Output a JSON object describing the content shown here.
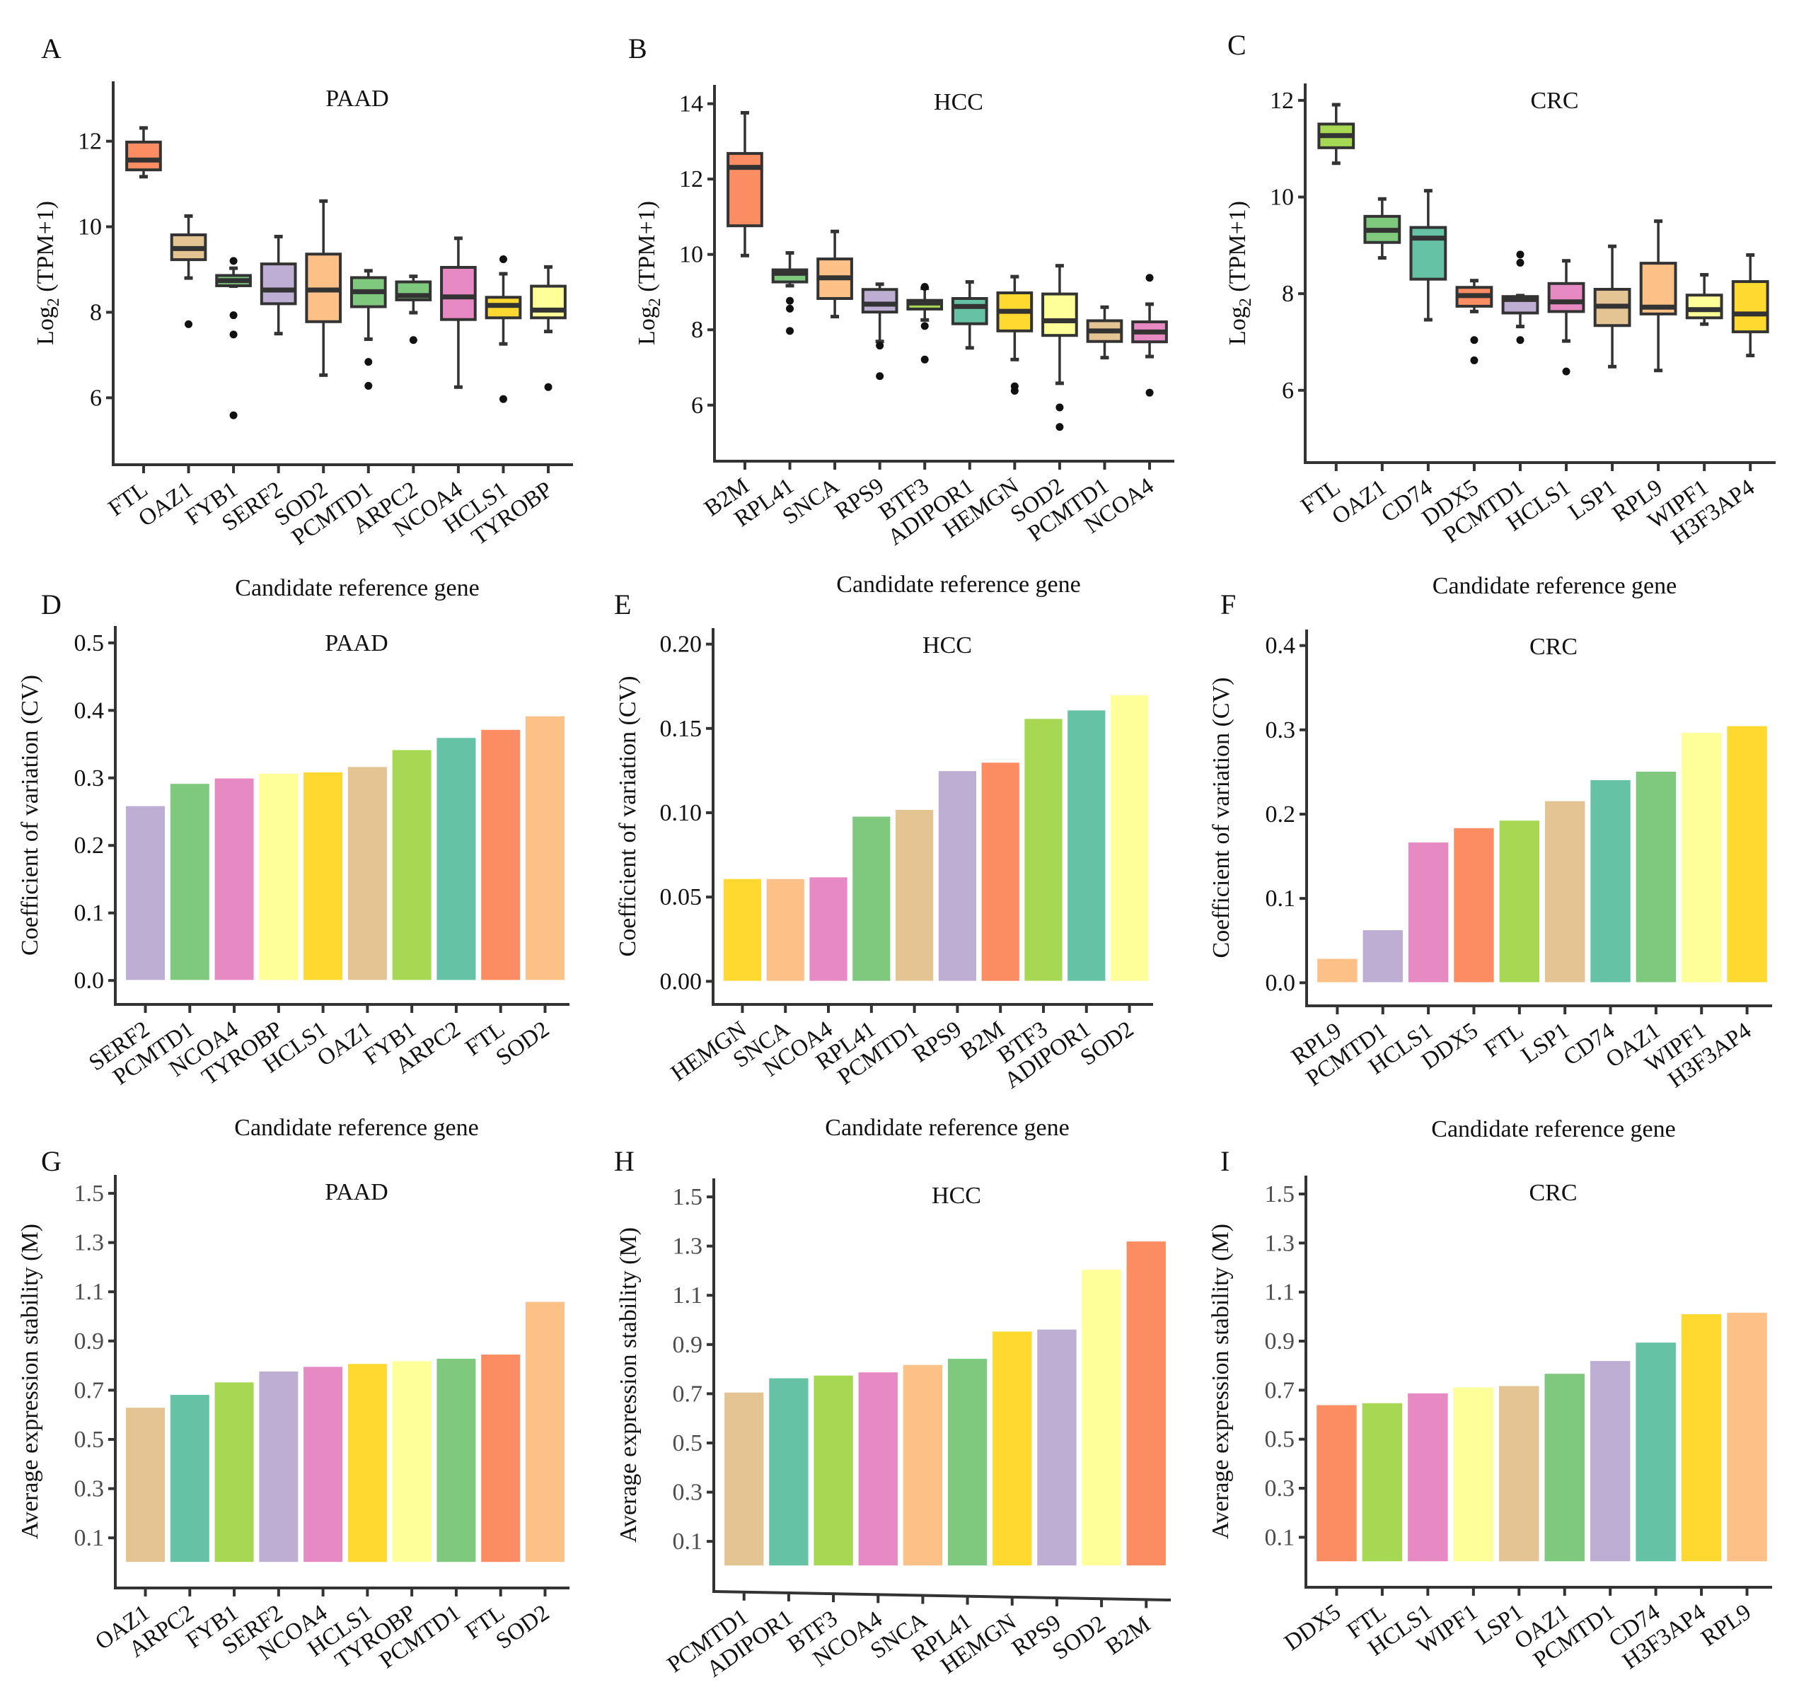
{
  "figure": {
    "palette": {
      "orange": "#FC8D62",
      "tan": "#E5C494",
      "lime": "#A6D854",
      "lavender": "#BEAED4",
      "peach": "#FDC086",
      "green": "#7FC97F",
      "pink": "#E78AC3",
      "gold": "#FFD92F",
      "lightyellow": "#FFFF99",
      "teal": "#66C2A5"
    }
  },
  "chart_data": [
    {
      "id": "A",
      "panel_letter": "A",
      "type": "boxplot",
      "title": "PAAD",
      "xlabel": "Candidate reference gene",
      "ylabel_main": "Log",
      "ylabel_sub": "2",
      "ylabel_rest": " (TPM+1)",
      "ylim": [
        4.6,
        13.4
      ],
      "yticks": [
        6,
        8,
        10,
        12
      ],
      "ytick_labels": [
        "6",
        "8",
        "10",
        "12"
      ],
      "categories": [
        "FTL",
        "OAZ1",
        "FYB1",
        "SERF2",
        "SOD2",
        "PCMTD1",
        "ARPC2",
        "NCOA4",
        "HCLS1",
        "TYROBP"
      ],
      "colors": [
        "orange",
        "tan",
        "green",
        "lavender",
        "peach",
        "green",
        "green",
        "pink",
        "gold",
        "lightyellow"
      ],
      "boxes": [
        {
          "whisker_low": 11.17,
          "q1": 11.33,
          "median": 11.56,
          "q3": 11.98,
          "whisker_high": 12.31,
          "outliers": []
        },
        {
          "whisker_low": 8.8,
          "q1": 9.23,
          "median": 9.49,
          "q3": 9.81,
          "whisker_high": 10.25,
          "outliers": [
            7.72
          ]
        },
        {
          "whisker_low": 8.61,
          "q1": 8.62,
          "median": 8.74,
          "q3": 8.86,
          "whisker_high": 9.03,
          "outliers": [
            9.2,
            7.93,
            7.48,
            5.59
          ]
        },
        {
          "whisker_low": 7.5,
          "q1": 8.2,
          "median": 8.52,
          "q3": 9.13,
          "whisker_high": 9.77,
          "outliers": []
        },
        {
          "whisker_low": 6.53,
          "q1": 7.78,
          "median": 8.52,
          "q3": 9.36,
          "whisker_high": 10.6,
          "outliers": []
        },
        {
          "whisker_low": 7.37,
          "q1": 8.13,
          "median": 8.48,
          "q3": 8.81,
          "whisker_high": 8.97,
          "outliers": [
            6.84,
            6.28
          ]
        },
        {
          "whisker_low": 7.99,
          "q1": 8.29,
          "median": 8.39,
          "q3": 8.71,
          "whisker_high": 8.84,
          "outliers": [
            7.35
          ]
        },
        {
          "whisker_low": 6.25,
          "q1": 7.83,
          "median": 8.36,
          "q3": 9.05,
          "whisker_high": 9.73,
          "outliers": []
        },
        {
          "whisker_low": 7.26,
          "q1": 7.87,
          "median": 8.16,
          "q3": 8.35,
          "whisker_high": 8.9,
          "outliers": [
            9.24,
            5.97
          ]
        },
        {
          "whisker_low": 7.55,
          "q1": 7.87,
          "median": 8.05,
          "q3": 8.61,
          "whisker_high": 9.06,
          "outliers": [
            6.25
          ]
        }
      ]
    },
    {
      "id": "B",
      "panel_letter": "B",
      "type": "boxplot",
      "title": "HCC",
      "xlabel": "Candidate reference gene",
      "ylabel_main": "Log",
      "ylabel_sub": "2",
      "ylabel_rest": " (TPM+1)",
      "ylim": [
        4.7,
        14.5
      ],
      "yticks": [
        6,
        8,
        10,
        12,
        14
      ],
      "ytick_labels": [
        "6",
        "8",
        "10",
        "12",
        "14"
      ],
      "categories": [
        "B2M",
        "RPL41",
        "SNCA",
        "RPS9",
        "BTF3",
        "ADIPOR1",
        "HEMGN",
        "SOD2",
        "PCMTD1",
        "NCOA4"
      ],
      "colors": [
        "orange",
        "green",
        "peach",
        "lavender",
        "lime",
        "teal",
        "gold",
        "lightyellow",
        "tan",
        "pink"
      ],
      "boxes": [
        {
          "whisker_low": 9.97,
          "q1": 10.76,
          "median": 12.31,
          "q3": 12.68,
          "whisker_high": 13.76,
          "outliers": []
        },
        {
          "whisker_low": 9.17,
          "q1": 9.27,
          "median": 9.5,
          "q3": 9.59,
          "whisker_high": 10.04,
          "outliers": [
            8.77,
            8.56,
            7.97
          ]
        },
        {
          "whisker_low": 8.35,
          "q1": 8.83,
          "median": 9.38,
          "q3": 9.88,
          "whisker_high": 10.61,
          "outliers": []
        },
        {
          "whisker_low": 7.69,
          "q1": 8.47,
          "median": 8.68,
          "q3": 9.07,
          "whisker_high": 9.21,
          "outliers": [
            7.58,
            6.77
          ]
        },
        {
          "whisker_low": 8.26,
          "q1": 8.55,
          "median": 8.71,
          "q3": 8.78,
          "whisker_high": 9.1,
          "outliers": [
            9.14,
            8.1,
            7.21
          ]
        },
        {
          "whisker_low": 7.52,
          "q1": 8.16,
          "median": 8.62,
          "q3": 8.83,
          "whisker_high": 9.27,
          "outliers": []
        },
        {
          "whisker_low": 7.21,
          "q1": 7.97,
          "median": 8.49,
          "q3": 8.98,
          "whisker_high": 9.41,
          "outliers": [
            6.5,
            6.38
          ]
        },
        {
          "whisker_low": 6.58,
          "q1": 7.85,
          "median": 8.24,
          "q3": 8.95,
          "whisker_high": 9.7,
          "outliers": [
            5.94,
            5.42
          ]
        },
        {
          "whisker_low": 7.26,
          "q1": 7.69,
          "median": 7.97,
          "q3": 8.24,
          "whisker_high": 8.6,
          "outliers": []
        },
        {
          "whisker_low": 7.29,
          "q1": 7.68,
          "median": 7.94,
          "q3": 8.21,
          "whisker_high": 8.68,
          "outliers": [
            9.38,
            6.33
          ]
        }
      ]
    },
    {
      "id": "C",
      "panel_letter": "C",
      "type": "boxplot",
      "title": "CRC",
      "xlabel": "Candidate reference gene",
      "ylabel_main": "Log",
      "ylabel_sub": "2",
      "ylabel_rest": " (TPM+1)",
      "ylim": [
        4.65,
        12.35
      ],
      "yticks": [
        6,
        8,
        10,
        12
      ],
      "ytick_labels": [
        "6",
        "8",
        "10",
        "12"
      ],
      "categories": [
        "FTL",
        "OAZ1",
        "CD74",
        "DDX5",
        "PCMTD1",
        "HCLS1",
        "LSP1",
        "RPL9",
        "WIPF1",
        "H3F3AP4"
      ],
      "colors": [
        "lime",
        "green",
        "teal",
        "orange",
        "lavender",
        "pink",
        "tan",
        "peach",
        "lightyellow",
        "gold"
      ],
      "boxes": [
        {
          "whisker_low": 10.7,
          "q1": 11.02,
          "median": 11.27,
          "q3": 11.51,
          "whisker_high": 11.91,
          "outliers": []
        },
        {
          "whisker_low": 8.74,
          "q1": 9.06,
          "median": 9.31,
          "q3": 9.6,
          "whisker_high": 9.96,
          "outliers": []
        },
        {
          "whisker_low": 7.46,
          "q1": 8.3,
          "median": 9.15,
          "q3": 9.37,
          "whisker_high": 10.13,
          "outliers": []
        },
        {
          "whisker_low": 7.63,
          "q1": 7.74,
          "median": 7.96,
          "q3": 8.13,
          "whisker_high": 8.27,
          "outliers": [
            7.04,
            6.62
          ]
        },
        {
          "whisker_low": 7.32,
          "q1": 7.6,
          "median": 7.88,
          "q3": 7.94,
          "whisker_high": 7.96,
          "outliers": [
            8.81,
            8.64,
            7.04
          ]
        },
        {
          "whisker_low": 7.02,
          "q1": 7.63,
          "median": 7.83,
          "q3": 8.21,
          "whisker_high": 8.68,
          "outliers": [
            6.39
          ]
        },
        {
          "whisker_low": 6.49,
          "q1": 7.34,
          "median": 7.74,
          "q3": 8.09,
          "whisker_high": 8.98,
          "outliers": []
        },
        {
          "whisker_low": 6.41,
          "q1": 7.58,
          "median": 7.72,
          "q3": 8.63,
          "whisker_high": 9.5,
          "outliers": []
        },
        {
          "whisker_low": 7.37,
          "q1": 7.5,
          "median": 7.67,
          "q3": 7.97,
          "whisker_high": 8.39,
          "outliers": []
        },
        {
          "whisker_low": 6.72,
          "q1": 7.21,
          "median": 7.58,
          "q3": 8.25,
          "whisker_high": 8.8,
          "outliers": []
        }
      ]
    },
    {
      "id": "D",
      "panel_letter": "D",
      "type": "bar",
      "title": "PAAD",
      "xlabel": "Candidate reference gene",
      "ylabel": "Coefficient of variation (CV)",
      "ylim": [
        -0.025,
        0.525
      ],
      "baseline": 0,
      "yticks": [
        0,
        0.1,
        0.2,
        0.3,
        0.4,
        0.5
      ],
      "ytick_labels": [
        "0.0",
        "0.1",
        "0.2",
        "0.3",
        "0.4",
        "0.5"
      ],
      "tick_label_style": "black",
      "categories": [
        "SERF2",
        "PCMTD1",
        "NCOA4",
        "TYROBP",
        "HCLS1",
        "OAZ1",
        "FYB1",
        "ARPC2",
        "FTL",
        "SOD2"
      ],
      "values": [
        0.259,
        0.292,
        0.3,
        0.307,
        0.309,
        0.317,
        0.342,
        0.36,
        0.372,
        0.392
      ],
      "colors": [
        "lavender",
        "green",
        "pink",
        "lightyellow",
        "gold",
        "tan",
        "lime",
        "teal",
        "orange",
        "peach"
      ]
    },
    {
      "id": "E",
      "panel_letter": "E",
      "type": "bar",
      "title": "HCC",
      "xlabel": "Candidate reference gene",
      "ylabel": "Coefficient of variation (CV)",
      "ylim": [
        -0.0095,
        0.2095
      ],
      "baseline": 0,
      "yticks": [
        0,
        0.05,
        0.1,
        0.15,
        0.2
      ],
      "ytick_labels": [
        "0.00",
        "0.05",
        "0.10",
        "0.15",
        "0.20"
      ],
      "tick_label_style": "black",
      "categories": [
        "HEMGN",
        "SNCA",
        "NCOA4",
        "RPL41",
        "PCMTD1",
        "RPS9",
        "B2M",
        "BTF3",
        "ADIPOR1",
        "SOD2"
      ],
      "values": [
        0.061,
        0.061,
        0.062,
        0.098,
        0.102,
        0.125,
        0.13,
        0.156,
        0.161,
        0.17
      ],
      "colors": [
        "gold",
        "peach",
        "pink",
        "green",
        "tan",
        "lavender",
        "orange",
        "lime",
        "teal",
        "lightyellow"
      ]
    },
    {
      "id": "F",
      "panel_letter": "F",
      "type": "bar",
      "title": "CRC",
      "xlabel": "Candidate reference gene",
      "ylabel": "Coefficient of variation (CV)",
      "ylim": [
        -0.019,
        0.419
      ],
      "baseline": 0,
      "yticks": [
        0,
        0.1,
        0.2,
        0.3,
        0.4
      ],
      "ytick_labels": [
        "0.0",
        "0.1",
        "0.2",
        "0.3",
        "0.4"
      ],
      "tick_label_style": "black",
      "categories": [
        "RPL9",
        "PCMTD1",
        "HCLS1",
        "DDX5",
        "FTL",
        "LSP1",
        "CD74",
        "OAZ1",
        "WIPF1",
        "H3F3AP4"
      ],
      "values": [
        0.029,
        0.063,
        0.167,
        0.184,
        0.193,
        0.216,
        0.241,
        0.251,
        0.297,
        0.305
      ],
      "colors": [
        "peach",
        "lavender",
        "pink",
        "orange",
        "lime",
        "tan",
        "teal",
        "green",
        "lightyellow",
        "gold"
      ]
    },
    {
      "id": "G",
      "panel_letter": "G",
      "type": "bar",
      "title": "PAAD",
      "xlabel": "Candidate reference gene",
      "ylabel": "Average expression stability (M)",
      "ylim": [
        -0.075,
        1.575
      ],
      "baseline": 0,
      "yticks": [
        0.1,
        0.3,
        0.5,
        0.7,
        0.9,
        1.1,
        1.3,
        1.5
      ],
      "ytick_labels": [
        "0.1",
        "0.3",
        "0.5",
        "0.7",
        "0.9",
        "1.1",
        "1.3",
        "1.5"
      ],
      "tick_label_style": "grey",
      "categories": [
        "OAZ1",
        "ARPC2",
        "FYB1",
        "SERF2",
        "NCOA4",
        "HCLS1",
        "TYROBP",
        "PCMTD1",
        "FTL",
        "SOD2"
      ],
      "values": [
        0.631,
        0.683,
        0.734,
        0.778,
        0.797,
        0.809,
        0.82,
        0.83,
        0.847,
        1.061
      ],
      "colors": [
        "tan",
        "teal",
        "lime",
        "lavender",
        "pink",
        "gold",
        "lightyellow",
        "green",
        "orange",
        "peach"
      ]
    },
    {
      "id": "H",
      "panel_letter": "H",
      "type": "bar",
      "title": "HCC",
      "xlabel": "Candidate reference gene",
      "ylabel": "Average expression stability (M)",
      "ylim": [
        -0.075,
        1.575
      ],
      "baseline": 0,
      "yticks": [
        0.1,
        0.3,
        0.5,
        0.7,
        0.9,
        1.1,
        1.3,
        1.5
      ],
      "ytick_labels": [
        "0.1",
        "0.3",
        "0.5",
        "0.7",
        "0.9",
        "1.1",
        "1.3",
        "1.5"
      ],
      "tick_label_style": "grey",
      "categories": [
        "PCMTD1",
        "ADIPOR1",
        "BTF3",
        "NCOA4",
        "SNCA",
        "RPL41",
        "HEMGN",
        "RPS9",
        "SOD2",
        "B2M"
      ],
      "values": [
        0.707,
        0.765,
        0.776,
        0.789,
        0.819,
        0.844,
        0.955,
        0.963,
        1.206,
        1.321
      ],
      "colors": [
        "tan",
        "teal",
        "lime",
        "pink",
        "peach",
        "green",
        "gold",
        "lavender",
        "lightyellow",
        "orange"
      ]
    },
    {
      "id": "I",
      "panel_letter": "I",
      "type": "bar",
      "title": "CRC",
      "xlabel": "Candidate reference gene",
      "ylabel": "Average expression stability (M)",
      "ylim": [
        -0.075,
        1.575
      ],
      "baseline": 0,
      "yticks": [
        0.1,
        0.3,
        0.5,
        0.7,
        0.9,
        1.1,
        1.3,
        1.5
      ],
      "ytick_labels": [
        "0.1",
        "0.3",
        "0.5",
        "0.7",
        "0.9",
        "1.1",
        "1.3",
        "1.5"
      ],
      "tick_label_style": "grey",
      "categories": [
        "DDX5",
        "FTL",
        "HCLS1",
        "WIPF1",
        "LSP1",
        "OAZ1",
        "PCMTD1",
        "CD74",
        "H3F3AP4",
        "RPL9"
      ],
      "values": [
        0.641,
        0.649,
        0.689,
        0.713,
        0.719,
        0.769,
        0.821,
        0.896,
        1.012,
        1.018
      ],
      "colors": [
        "orange",
        "lime",
        "pink",
        "lightyellow",
        "tan",
        "green",
        "lavender",
        "teal",
        "gold",
        "peach"
      ]
    }
  ]
}
